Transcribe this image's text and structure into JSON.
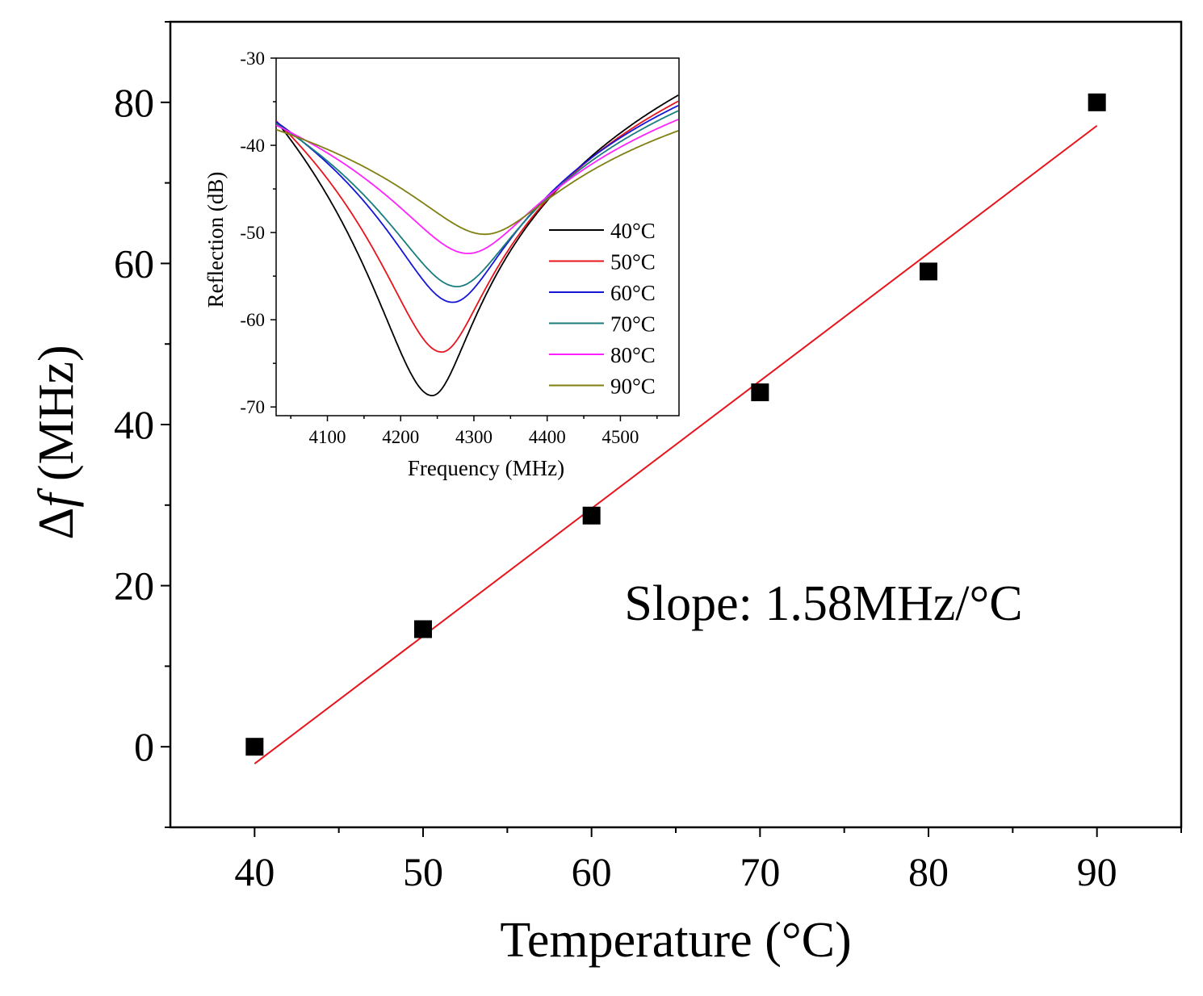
{
  "chart_data": [
    {
      "id": "main",
      "type": "scatter",
      "xlabel": "Temperature (°C)",
      "ylabel_symbol": "Δ",
      "ylabel_italic": "f",
      "ylabel_rest": " (MHz)",
      "xlim": [
        35,
        95
      ],
      "ylim": [
        -10,
        90
      ],
      "xticks": [
        40,
        50,
        60,
        70,
        80,
        90
      ],
      "xticks_minor": [
        45,
        55,
        65,
        75,
        85,
        95
      ],
      "yticks": [
        0,
        20,
        40,
        60,
        80
      ],
      "yticks_minor": [
        -10,
        10,
        30,
        50,
        70,
        90
      ],
      "grid": false,
      "series": [
        {
          "name": "Δf",
          "marker": "square",
          "color": "#000000",
          "x": [
            40,
            50,
            60,
            70,
            80,
            90
          ],
          "y": [
            0,
            14.6,
            28.7,
            44,
            59,
            80
          ]
        }
      ],
      "fit": {
        "name": "linear fit",
        "color": "#e8141c",
        "x": [
          40,
          90
        ],
        "y": [
          -2.1,
          77.1
        ]
      },
      "annotation": "Slope: 1.58MHz/°C"
    },
    {
      "id": "inset",
      "type": "line",
      "xlabel": "Frequency (MHz)",
      "ylabel": "Reflection (dB)",
      "xlim": [
        4030,
        4580
      ],
      "ylim": [
        -71,
        -30
      ],
      "xticks": [
        4100,
        4200,
        4300,
        4400,
        4500
      ],
      "yticks": [
        -30,
        -40,
        -50,
        -60,
        -70
      ],
      "legend_position": "center-right",
      "series": [
        {
          "name": "40°C",
          "color": "#000000",
          "f0": 4243,
          "min_db": -68.7,
          "w_left": 60,
          "w_right": 42,
          "shift_left": 1.15,
          "shift_right": 0,
          "y_left": -37.2,
          "y_right": -34.2
        },
        {
          "name": "50°C",
          "color": "#e8141c",
          "f0": 4256,
          "min_db": -63.7,
          "w_left": 62,
          "w_right": 46,
          "shift_left": 0.6,
          "shift_right": -0.6,
          "y_left": -37.2,
          "y_right": -34.9
        },
        {
          "name": "60°C",
          "color": "#1515d8",
          "f0": 4271,
          "min_db": -58.0,
          "w_left": 64,
          "w_right": 55,
          "shift_left": 0.45,
          "shift_right": -0.45,
          "y_left": -37.3,
          "y_right": -35.4
        },
        {
          "name": "70°C",
          "color": "#1a7d7d",
          "f0": 4277,
          "min_db": -56.2,
          "w_left": 70,
          "w_right": 60,
          "shift_left": 0.3,
          "shift_right": -0.3,
          "y_left": -37.5,
          "y_right": -36.0
        },
        {
          "name": "80°C",
          "color": "#ff22ff",
          "f0": 4292,
          "min_db": -52.4,
          "w_left": 75,
          "w_right": 70,
          "shift_left": 0.2,
          "shift_right": -0.2,
          "y_left": -37.7,
          "y_right": -37.0
        },
        {
          "name": "90°C",
          "color": "#7f7f12",
          "f0": 4315,
          "min_db": -50.2,
          "w_left": 75,
          "w_right": 70,
          "shift_left": 0.1,
          "shift_right": -0.1,
          "y_left": -38.2,
          "y_right": -38.3
        }
      ]
    }
  ]
}
